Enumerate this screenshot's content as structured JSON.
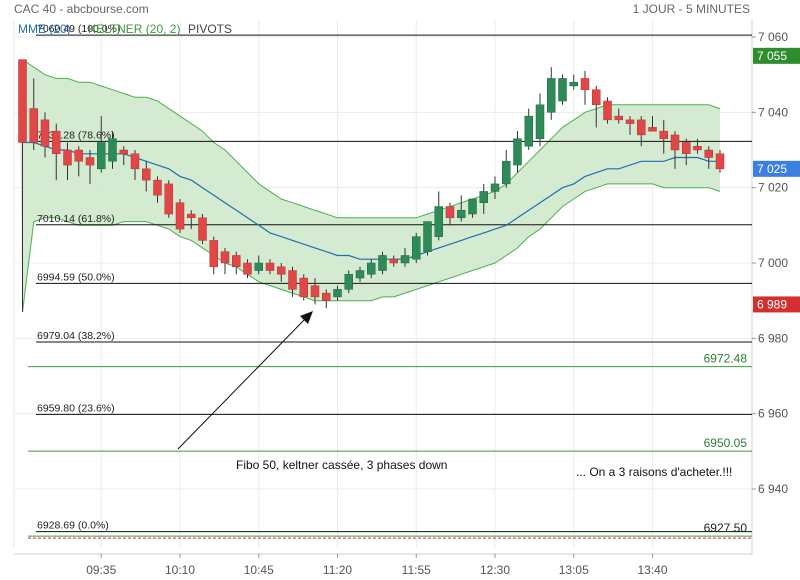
{
  "header": {
    "instrument": "CAC 40 - abcbourse.com",
    "timeframe": "1 JOUR - 5 MINUTES"
  },
  "legend": [
    {
      "label": "MME (20)",
      "color": "#1f6fb2"
    },
    {
      "label": "KELTNER (20, 2)",
      "color": "#3c9a3c"
    },
    {
      "label": "PIVOTS",
      "color": "#444444"
    }
  ],
  "chart_data": {
    "type": "candlestick",
    "y_axis": {
      "min": 6925,
      "max": 7065,
      "ticks": [
        7060,
        7040,
        7020,
        7000,
        6980,
        6960,
        6940
      ],
      "tick_labels": [
        "7 060",
        "7 040",
        "7 020",
        "7 000",
        "6 980",
        "6 960",
        "6 940"
      ],
      "position": "right"
    },
    "x_axis": {
      "tick_labels": [
        "09:35",
        "10:10",
        "10:45",
        "11:20",
        "11:55",
        "12:30",
        "13:05",
        "13:40"
      ],
      "tick_index": [
        7,
        14,
        21,
        28,
        35,
        42,
        49,
        56
      ]
    },
    "grid": true,
    "candles": [
      {
        "o": 7054,
        "h": 7054,
        "l": 6987,
        "c": 7032
      },
      {
        "o": 7041,
        "h": 7049,
        "l": 7030,
        "c": 7032
      },
      {
        "o": 7038,
        "h": 7040,
        "l": 7028,
        "c": 7031
      },
      {
        "o": 7035,
        "h": 7037,
        "l": 7022,
        "c": 7029
      },
      {
        "o": 7030,
        "h": 7032,
        "l": 7022,
        "c": 7026
      },
      {
        "o": 7030,
        "h": 7031,
        "l": 7023,
        "c": 7027
      },
      {
        "o": 7028,
        "h": 7030,
        "l": 7021,
        "c": 7026
      },
      {
        "o": 7025,
        "h": 7039,
        "l": 7024,
        "c": 7032
      },
      {
        "o": 7027,
        "h": 7035,
        "l": 7025,
        "c": 7033
      },
      {
        "o": 7030,
        "h": 7031,
        "l": 7026,
        "c": 7029
      },
      {
        "o": 7029,
        "h": 7030,
        "l": 7022,
        "c": 7025
      },
      {
        "o": 7025,
        "h": 7027,
        "l": 7019,
        "c": 7022
      },
      {
        "o": 7022,
        "h": 7023,
        "l": 7016,
        "c": 7018
      },
      {
        "o": 7021,
        "h": 7022,
        "l": 7012,
        "c": 7013
      },
      {
        "o": 7016,
        "h": 7017,
        "l": 7008,
        "c": 7009
      },
      {
        "o": 7013,
        "h": 7014,
        "l": 7009,
        "c": 7012
      },
      {
        "o": 7012,
        "h": 7013,
        "l": 7005,
        "c": 7006
      },
      {
        "o": 7006,
        "h": 7007,
        "l": 6997,
        "c": 6999
      },
      {
        "o": 7003,
        "h": 7004,
        "l": 6997,
        "c": 7000
      },
      {
        "o": 7002,
        "h": 7003,
        "l": 6997,
        "c": 6999
      },
      {
        "o": 7000,
        "h": 7001,
        "l": 6996,
        "c": 6997
      },
      {
        "o": 6998,
        "h": 7002,
        "l": 6997,
        "c": 7000
      },
      {
        "o": 7000,
        "h": 7001,
        "l": 6997,
        "c": 6998
      },
      {
        "o": 6999,
        "h": 7000,
        "l": 6995,
        "c": 6997
      },
      {
        "o": 6998,
        "h": 6999,
        "l": 6991,
        "c": 6993
      },
      {
        "o": 6996,
        "h": 6997,
        "l": 6990,
        "c": 6991
      },
      {
        "o": 6994,
        "h": 6996,
        "l": 6989,
        "c": 6991
      },
      {
        "o": 6992,
        "h": 6993,
        "l": 6988,
        "c": 6990
      },
      {
        "o": 6991,
        "h": 6994,
        "l": 6990,
        "c": 6993
      },
      {
        "o": 6993,
        "h": 6998,
        "l": 6992,
        "c": 6997
      },
      {
        "o": 6996,
        "h": 6999,
        "l": 6995,
        "c": 6998
      },
      {
        "o": 6997,
        "h": 7001,
        "l": 6996,
        "c": 7000
      },
      {
        "o": 6998,
        "h": 7003,
        "l": 6997,
        "c": 7002
      },
      {
        "o": 7001,
        "h": 7002,
        "l": 6999,
        "c": 7000
      },
      {
        "o": 7000,
        "h": 7004,
        "l": 6999,
        "c": 7002
      },
      {
        "o": 7001,
        "h": 7008,
        "l": 7000,
        "c": 7007
      },
      {
        "o": 7003,
        "h": 7011,
        "l": 7002,
        "c": 7011
      },
      {
        "o": 7007,
        "h": 7019,
        "l": 7006,
        "c": 7015
      },
      {
        "o": 7015,
        "h": 7016,
        "l": 7010,
        "c": 7012
      },
      {
        "o": 7012,
        "h": 7018,
        "l": 7011,
        "c": 7014
      },
      {
        "o": 7013,
        "h": 7017,
        "l": 7012,
        "c": 7017
      },
      {
        "o": 7016,
        "h": 7021,
        "l": 7013,
        "c": 7019
      },
      {
        "o": 7019,
        "h": 7023,
        "l": 7017,
        "c": 7021
      },
      {
        "o": 7021,
        "h": 7030,
        "l": 7020,
        "c": 7027
      },
      {
        "o": 7026,
        "h": 7035,
        "l": 7024,
        "c": 7033
      },
      {
        "o": 7031,
        "h": 7041,
        "l": 7030,
        "c": 7039
      },
      {
        "o": 7033,
        "h": 7045,
        "l": 7031,
        "c": 7042
      },
      {
        "o": 7040,
        "h": 7052,
        "l": 7038,
        "c": 7049
      },
      {
        "o": 7043,
        "h": 7050,
        "l": 7042,
        "c": 7049
      },
      {
        "o": 7047,
        "h": 7050,
        "l": 7046,
        "c": 7048
      },
      {
        "o": 7049,
        "h": 7051,
        "l": 7042,
        "c": 7046
      },
      {
        "o": 7046,
        "h": 7047,
        "l": 7036,
        "c": 7042
      },
      {
        "o": 7043,
        "h": 7044,
        "l": 7037,
        "c": 7038
      },
      {
        "o": 7039,
        "h": 7041,
        "l": 7037,
        "c": 7038
      },
      {
        "o": 7038,
        "h": 7039,
        "l": 7034,
        "c": 7037
      },
      {
        "o": 7038,
        "h": 7039,
        "l": 7031,
        "c": 7034
      },
      {
        "o": 7036,
        "h": 7039,
        "l": 7035,
        "c": 7035
      },
      {
        "o": 7035,
        "h": 7038,
        "l": 7029,
        "c": 7033
      },
      {
        "o": 7034,
        "h": 7035,
        "l": 7025,
        "c": 7030
      },
      {
        "o": 7032,
        "h": 7033,
        "l": 7026,
        "c": 7029
      },
      {
        "o": 7031,
        "h": 7033,
        "l": 7029,
        "c": 7030
      },
      {
        "o": 7030,
        "h": 7031,
        "l": 7025,
        "c": 7028
      },
      {
        "o": 7029,
        "h": 7030,
        "l": 7024,
        "c": 7025
      }
    ],
    "ema": [
      7032,
      7032,
      7031,
      7030,
      7030,
      7029,
      7029,
      7029,
      7029,
      7029,
      7028,
      7027,
      7026,
      7025,
      7023,
      7022,
      7020,
      7018,
      7016,
      7014,
      7012,
      7010,
      7008,
      7007,
      7006,
      7005,
      7004,
      7003,
      7002,
      7002,
      7001,
      7001,
      7001,
      7001,
      7001,
      7002,
      7003,
      7004,
      7005,
      7006,
      7007,
      7008,
      7009,
      7010,
      7012,
      7014,
      7016,
      7018,
      7020,
      7021,
      7023,
      7024,
      7025,
      7025,
      7026,
      7027,
      7027,
      7027,
      7028,
      7028,
      7028,
      7027,
      7027
    ],
    "keltner_upper": [
      7054,
      7052,
      7050,
      7049,
      7049,
      7048,
      7048,
      7047,
      7046,
      7045,
      7044,
      7044,
      7043,
      7041,
      7039,
      7037,
      7035,
      7032,
      7030,
      7027,
      7024,
      7021,
      7019,
      7017,
      7016,
      7015,
      7014,
      7013,
      7012,
      7012,
      7012,
      7012,
      7012,
      7012,
      7012,
      7012,
      7013,
      7014,
      7015,
      7016,
      7017,
      7018,
      7019,
      7021,
      7024,
      7027,
      7030,
      7033,
      7036,
      7038,
      7040,
      7041,
      7042,
      7042,
      7042,
      7042,
      7042,
      7042,
      7042,
      7042,
      7042,
      7042,
      7041
    ],
    "keltner_lower": [
      6987,
      7011,
      7012,
      7012,
      7011,
      7010,
      7010,
      7010,
      7010,
      7011,
      7011,
      7011,
      7010,
      7009,
      7007,
      7006,
      7004,
      7002,
      7000,
      6999,
      6997,
      6995,
      6994,
      6993,
      6992,
      6991,
      6990,
      6990,
      6990,
      6990,
      6990,
      6990,
      6991,
      6991,
      6992,
      6993,
      6994,
      6995,
      6996,
      6997,
      6998,
      6999,
      7000,
      7002,
      7004,
      7007,
      7009,
      7012,
      7015,
      7017,
      7019,
      7020,
      7021,
      7021,
      7021,
      7021,
      7021,
      7020,
      7020,
      7020,
      7020,
      7020,
      7019
    ],
    "fibonacci": [
      {
        "level": 7060.49,
        "label": "7060.49  (100.0%)"
      },
      {
        "level": 7032.28,
        "label": "7032.28  (78.6%)"
      },
      {
        "level": 7010.14,
        "label": "7010.14  (61.8%)"
      },
      {
        "level": 6994.59,
        "label": "6994.59  (50.0%)"
      },
      {
        "level": 6979.04,
        "label": "6979.04  (38.2%)"
      },
      {
        "level": 6959.8,
        "label": "6959.80  (23.6%)"
      },
      {
        "level": 6928.69,
        "label": "6928.69  (0.0%)"
      }
    ],
    "pivots": [
      {
        "level": 6972.48,
        "label": "6972.48"
      },
      {
        "level": 6950.05,
        "label": "6950.05"
      },
      {
        "level": 6927.5,
        "label": "6927.50"
      }
    ],
    "price_badges": [
      {
        "value": 7055,
        "label": "7 055",
        "color": "#2e8b2e"
      },
      {
        "value": 7025,
        "label": "7 025",
        "color": "#3d7fe0"
      },
      {
        "value": 6989,
        "label": "6 989",
        "color": "#d32f2f"
      }
    ],
    "annotations": [
      {
        "text": "Fibo 50, keltner cassée, 3 phases down"
      },
      {
        "text": "... On a 3 raisons d'acheter.!!!"
      }
    ]
  }
}
